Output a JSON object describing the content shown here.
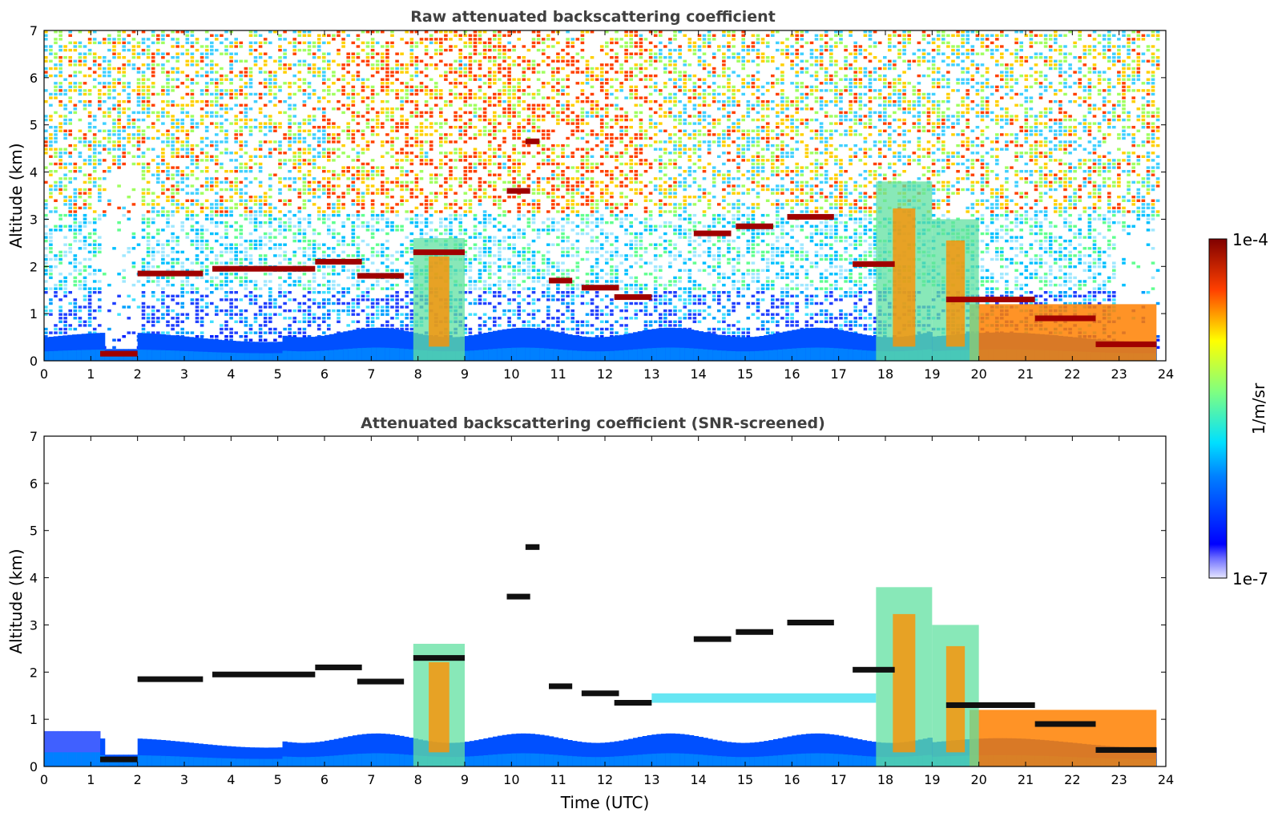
{
  "chart_data": [
    {
      "type": "heatmap",
      "title": "Raw attenuated backscattering coefficient",
      "xlabel": "",
      "ylabel": "Altitude (km)",
      "xlim": [
        0,
        24
      ],
      "ylim": [
        0,
        7
      ],
      "xticks": [
        "0",
        "1",
        "2",
        "3",
        "4",
        "5",
        "6",
        "7",
        "8",
        "9",
        "10",
        "11",
        "12",
        "13",
        "14",
        "15",
        "16",
        "17",
        "18",
        "19",
        "20",
        "21",
        "22",
        "23",
        "24"
      ],
      "yticks": [
        "0",
        "1",
        "2",
        "3",
        "4",
        "5",
        "6",
        "7"
      ],
      "screened": false,
      "features": {
        "cloud_layers": [
          {
            "t0": 1.2,
            "t1": 2.0,
            "h": 0.15
          },
          {
            "t0": 2.0,
            "t1": 3.4,
            "h": 1.85
          },
          {
            "t0": 3.6,
            "t1": 5.8,
            "h": 1.95
          },
          {
            "t0": 5.8,
            "t1": 6.8,
            "h": 2.1
          },
          {
            "t0": 6.7,
            "t1": 7.7,
            "h": 1.8
          },
          {
            "t0": 7.9,
            "t1": 9.0,
            "h": 2.3
          },
          {
            "t0": 9.9,
            "t1": 10.4,
            "h": 3.6
          },
          {
            "t0": 10.3,
            "t1": 10.6,
            "h": 4.65
          },
          {
            "t0": 10.8,
            "t1": 11.3,
            "h": 1.7
          },
          {
            "t0": 11.5,
            "t1": 12.3,
            "h": 1.55
          },
          {
            "t0": 12.2,
            "t1": 13.0,
            "h": 1.35
          },
          {
            "t0": 13.9,
            "t1": 14.7,
            "h": 2.7
          },
          {
            "t0": 14.8,
            "t1": 15.6,
            "h": 2.85
          },
          {
            "t0": 15.9,
            "t1": 16.9,
            "h": 3.05
          },
          {
            "t0": 17.3,
            "t1": 18.2,
            "h": 2.05
          },
          {
            "t0": 19.3,
            "t1": 21.2,
            "h": 1.3
          },
          {
            "t0": 21.2,
            "t1": 22.5,
            "h": 0.9
          },
          {
            "t0": 22.5,
            "t1": 23.8,
            "h": 0.35
          }
        ],
        "plumes": [
          {
            "t0": 7.9,
            "t1": 9.0,
            "top": 2.6
          },
          {
            "t0": 17.8,
            "t1": 19.0,
            "top": 3.8
          },
          {
            "t0": 19.0,
            "t1": 20.0,
            "top": 3.0
          }
        ],
        "dense_aerosol": {
          "t0": 19.8,
          "t1": 23.8,
          "top": 1.5
        }
      }
    },
    {
      "type": "heatmap",
      "title": "Attenuated backscattering coefficient (SNR-screened)",
      "xlabel": "Time (UTC)",
      "ylabel": "Altitude (km)",
      "xlim": [
        0,
        24
      ],
      "ylim": [
        0,
        7
      ],
      "xticks": [
        "0",
        "1",
        "2",
        "3",
        "4",
        "5",
        "6",
        "7",
        "8",
        "9",
        "10",
        "11",
        "12",
        "13",
        "14",
        "15",
        "16",
        "17",
        "18",
        "19",
        "20",
        "21",
        "22",
        "23",
        "24"
      ],
      "yticks": [
        "0",
        "1",
        "2",
        "3",
        "4",
        "5",
        "6",
        "7"
      ],
      "screened": true,
      "features": {
        "cloud_layers": [
          {
            "t0": 1.2,
            "t1": 2.0,
            "h": 0.15
          },
          {
            "t0": 2.0,
            "t1": 3.4,
            "h": 1.85
          },
          {
            "t0": 3.6,
            "t1": 5.8,
            "h": 1.95
          },
          {
            "t0": 5.8,
            "t1": 6.8,
            "h": 2.1
          },
          {
            "t0": 6.7,
            "t1": 7.7,
            "h": 1.8
          },
          {
            "t0": 7.9,
            "t1": 9.0,
            "h": 2.3
          },
          {
            "t0": 9.9,
            "t1": 10.4,
            "h": 3.6
          },
          {
            "t0": 10.3,
            "t1": 10.6,
            "h": 4.65
          },
          {
            "t0": 10.8,
            "t1": 11.3,
            "h": 1.7
          },
          {
            "t0": 11.5,
            "t1": 12.3,
            "h": 1.55
          },
          {
            "t0": 12.2,
            "t1": 13.0,
            "h": 1.35
          },
          {
            "t0": 13.9,
            "t1": 14.7,
            "h": 2.7
          },
          {
            "t0": 14.8,
            "t1": 15.6,
            "h": 2.85
          },
          {
            "t0": 15.9,
            "t1": 16.9,
            "h": 3.05
          },
          {
            "t0": 17.3,
            "t1": 18.2,
            "h": 2.05
          },
          {
            "t0": 19.3,
            "t1": 21.2,
            "h": 1.3
          },
          {
            "t0": 21.2,
            "t1": 22.5,
            "h": 0.9
          },
          {
            "t0": 22.5,
            "t1": 23.8,
            "h": 0.35
          }
        ],
        "thin_layer": {
          "t0": 13.0,
          "t1": 17.8,
          "h": 1.45
        },
        "plumes": [
          {
            "t0": 7.9,
            "t1": 9.0,
            "top": 2.6
          },
          {
            "t0": 17.8,
            "t1": 19.0,
            "top": 3.8
          },
          {
            "t0": 19.0,
            "t1": 20.0,
            "top": 3.0
          }
        ],
        "dense_aerosol": {
          "t0": 19.8,
          "t1": 23.8,
          "top": 1.5
        }
      }
    }
  ],
  "colorbar": {
    "label": "1/m/sr",
    "max_label": "1e-4",
    "min_label": "1e-7",
    "scale": "log",
    "colormap": "jet"
  }
}
